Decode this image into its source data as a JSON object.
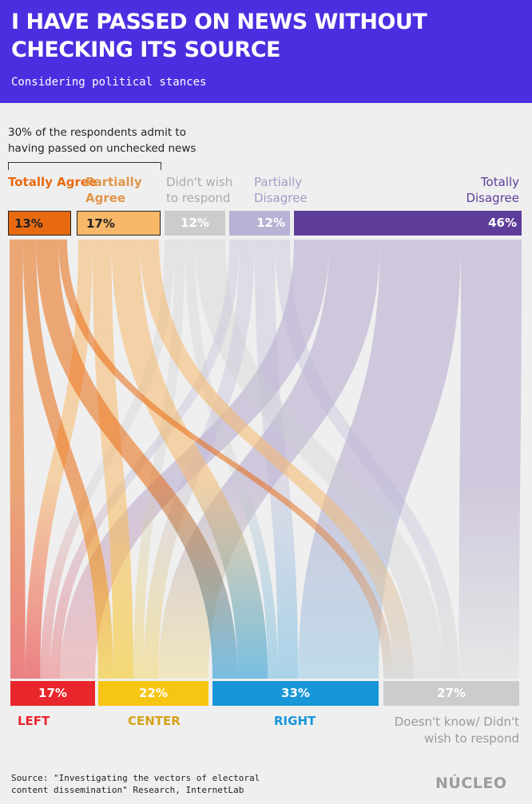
{
  "title": "I HAVE PASSED ON NEWS WITHOUT\nCHECKING ITS SOURCE",
  "subtitle": "Considering political stances",
  "note": "30% of the respondents admit to having passed on unchecked news",
  "source": "Source:  \"Investigating the vectors of electoral\ncontent dissemination\" Research, InternetLab",
  "logo": "NÚCLEO",
  "chart_data": {
    "type": "sankey",
    "title": "I HAVE PASSED ON NEWS WITHOUT CHECKING ITS SOURCE",
    "subtitle": "Considering political stances",
    "sources": [
      {
        "label": "Totally Agree",
        "value": 13,
        "display": "13%",
        "color": "#e86a10"
      },
      {
        "label": "Partially Agree",
        "value": 17,
        "display": "17%",
        "color": "#f7b86a"
      },
      {
        "label": "Didn't wish to respond",
        "value": 12,
        "display": "12%",
        "color": "#cccccc"
      },
      {
        "label": "Partially Disagree",
        "value": 12,
        "display": "12%",
        "color": "#b8b2d4"
      },
      {
        "label": "Totally Disagree",
        "value": 46,
        "display": "46%",
        "color": "#5e3d9a"
      }
    ],
    "targets": [
      {
        "label": "LEFT",
        "value": 17,
        "display": "17%",
        "color": "#e8262b"
      },
      {
        "label": "CENTER",
        "value": 22,
        "display": "22%",
        "color": "#f7c613"
      },
      {
        "label": "RIGHT",
        "value": 33,
        "display": "33%",
        "color": "#1796d8"
      },
      {
        "label": "Doesn't know/ Didn't wish to respond",
        "value": 27,
        "display": "27%",
        "color": "#cccccc"
      }
    ],
    "flows": [
      {
        "from": 0,
        "to": 0,
        "value": 3
      },
      {
        "from": 0,
        "to": 1,
        "value": 3
      },
      {
        "from": 0,
        "to": 2,
        "value": 5
      },
      {
        "from": 0,
        "to": 3,
        "value": 2
      },
      {
        "from": 1,
        "to": 0,
        "value": 3
      },
      {
        "from": 1,
        "to": 1,
        "value": 4
      },
      {
        "from": 1,
        "to": 2,
        "value": 6
      },
      {
        "from": 1,
        "to": 3,
        "value": 4
      },
      {
        "from": 2,
        "to": 0,
        "value": 2
      },
      {
        "from": 2,
        "to": 1,
        "value": 2
      },
      {
        "from": 2,
        "to": 2,
        "value": 2
      },
      {
        "from": 2,
        "to": 3,
        "value": 6
      },
      {
        "from": 3,
        "to": 0,
        "value": 2
      },
      {
        "from": 3,
        "to": 1,
        "value": 3
      },
      {
        "from": 3,
        "to": 2,
        "value": 4
      },
      {
        "from": 3,
        "to": 3,
        "value": 3
      },
      {
        "from": 4,
        "to": 0,
        "value": 7
      },
      {
        "from": 4,
        "to": 1,
        "value": 10
      },
      {
        "from": 4,
        "to": 2,
        "value": 16
      },
      {
        "from": 4,
        "to": 3,
        "value": 12
      }
    ]
  }
}
